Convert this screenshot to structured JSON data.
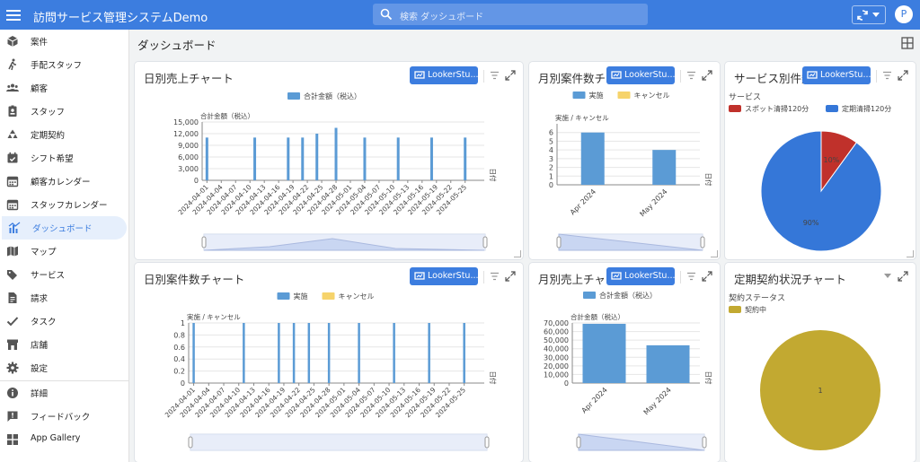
{
  "app": {
    "title": "訪問サービス管理システムDemo",
    "avatar_letter": "P"
  },
  "search": {
    "placeholder": "検索 ダッシュボード"
  },
  "sidebar": {
    "items": [
      {
        "label": "案件",
        "icon": "box-icon"
      },
      {
        "label": "手配スタッフ",
        "icon": "walking-person-icon"
      },
      {
        "label": "顧客",
        "icon": "users-icon"
      },
      {
        "label": "スタッフ",
        "icon": "badge-icon"
      },
      {
        "label": "定期契約",
        "icon": "recycle-icon"
      },
      {
        "label": "シフト希望",
        "icon": "calendar-check-icon"
      },
      {
        "label": "顧客カレンダー",
        "icon": "calendar-icon"
      },
      {
        "label": "スタッフカレンダー",
        "icon": "calendar-icon"
      },
      {
        "label": "ダッシュボード",
        "icon": "chart-icon"
      },
      {
        "label": "マップ",
        "icon": "map-icon"
      },
      {
        "label": "サービス",
        "icon": "tags-icon"
      },
      {
        "label": "請求",
        "icon": "invoice-icon"
      },
      {
        "label": "タスク",
        "icon": "check-icon"
      },
      {
        "label": "店舗",
        "icon": "store-icon"
      },
      {
        "label": "設定",
        "icon": "gear-icon"
      },
      {
        "label": "詳細",
        "icon": "info-icon"
      },
      {
        "label": "フィードバック",
        "icon": "feedback-icon"
      },
      {
        "label": "App Gallery",
        "icon": "apps-icon"
      }
    ]
  },
  "page": {
    "title": "ダッシュボード"
  },
  "cards": {
    "daily_sales": {
      "title": "日別売上チャート"
    },
    "monthly_count": {
      "title": "月別案件数チャート"
    },
    "service_count": {
      "title": "サービス別件数"
    },
    "daily_count": {
      "title": "日別案件数チャート"
    },
    "monthly_sales": {
      "title": "月別売上チャート"
    },
    "contract_status": {
      "title": "定期契約状況チャート"
    }
  },
  "looker_label": "LookerStu...",
  "colors": {
    "primary": "#3c7ddf",
    "bar": "#5b9bd5",
    "cancel": "#f6d36b",
    "red": "#c0312b",
    "blue": "#3577d8",
    "olive": "#c2a931"
  },
  "chart_data": [
    {
      "id": "daily_sales",
      "type": "bar",
      "legend": [
        "合計金額（税込）"
      ],
      "ylabel": "合計金額（税込）",
      "xlabel": "日付",
      "ylim": [
        0,
        15000
      ],
      "yticks": [
        0,
        3000,
        6000,
        9000,
        12000,
        15000
      ],
      "ytick_labels": [
        "0",
        "3,000",
        "6,000",
        "9,000",
        "12,000",
        "15,000"
      ],
      "xlim": [
        "2024-03-31",
        "2024-05-29"
      ],
      "x_tick_labels": [
        "2024-04-01",
        "2024-04-04",
        "2024-04-07",
        "2024-04-10",
        "2024-04-13",
        "2024-04-16",
        "2024-04-19",
        "2024-04-22",
        "2024-04-25",
        "2024-04-28",
        "2024-05-01",
        "2024-05-04",
        "2024-05-07",
        "2024-05-10",
        "2024-05-13",
        "2024-05-16",
        "2024-05-19",
        "2024-05-22",
        "2024-05-25"
      ],
      "points": [
        {
          "x": "2024-04-01",
          "y": 11000
        },
        {
          "x": "2024-04-11",
          "y": 11000
        },
        {
          "x": "2024-04-18",
          "y": 11000
        },
        {
          "x": "2024-04-21",
          "y": 11000
        },
        {
          "x": "2024-04-24",
          "y": 12000
        },
        {
          "x": "2024-04-28",
          "y": 13500
        },
        {
          "x": "2024-05-04",
          "y": 11000
        },
        {
          "x": "2024-05-11",
          "y": 11000
        },
        {
          "x": "2024-05-18",
          "y": 11000
        },
        {
          "x": "2024-05-25",
          "y": 11000
        },
        {
          "x": "2024-06-01",
          "y": 11000
        }
      ]
    },
    {
      "id": "monthly_count",
      "type": "bar",
      "legend": [
        "実施",
        "キャンセル"
      ],
      "ylabel": "実施 / キャンセル",
      "xlabel": "日付",
      "ylim": [
        0,
        7
      ],
      "yticks": [
        0,
        1,
        2,
        3,
        4,
        5,
        6
      ],
      "categories": [
        "Apr 2024",
        "May 2024"
      ],
      "series": [
        {
          "name": "実施",
          "values": [
            6,
            4
          ]
        },
        {
          "name": "キャンセル",
          "values": [
            0,
            0
          ]
        }
      ]
    },
    {
      "id": "service_count",
      "type": "pie",
      "legend_title": "サービス",
      "slices": [
        {
          "label": "スポット清掃120分",
          "value": 10,
          "text": "10%"
        },
        {
          "label": "定期清掃120分",
          "value": 90,
          "text": "90%"
        }
      ]
    },
    {
      "id": "daily_count",
      "type": "bar",
      "legend": [
        "実施",
        "キャンセル"
      ],
      "ylabel": "実施 / キャンセル",
      "xlabel": "日付",
      "ylim": [
        0,
        1
      ],
      "yticks": [
        0,
        0.2,
        0.4,
        0.6,
        0.8,
        1
      ],
      "xlim": [
        "2024-03-31",
        "2024-05-29"
      ],
      "x_tick_labels": [
        "2024-04-01",
        "2024-04-04",
        "2024-04-07",
        "2024-04-10",
        "2024-04-13",
        "2024-04-16",
        "2024-04-19",
        "2024-04-22",
        "2024-04-25",
        "2024-04-28",
        "2024-05-01",
        "2024-05-04",
        "2024-05-07",
        "2024-05-10",
        "2024-05-13",
        "2024-05-16",
        "2024-05-19",
        "2024-05-22",
        "2024-05-25"
      ],
      "points": [
        {
          "x": "2024-04-01",
          "y": 1
        },
        {
          "x": "2024-04-11",
          "y": 1
        },
        {
          "x": "2024-04-18",
          "y": 1
        },
        {
          "x": "2024-04-21",
          "y": 1
        },
        {
          "x": "2024-04-24",
          "y": 1
        },
        {
          "x": "2024-04-28",
          "y": 1
        },
        {
          "x": "2024-05-04",
          "y": 1
        },
        {
          "x": "2024-05-11",
          "y": 1
        },
        {
          "x": "2024-05-18",
          "y": 1
        },
        {
          "x": "2024-05-25",
          "y": 1
        },
        {
          "x": "2024-06-01",
          "y": 1
        }
      ]
    },
    {
      "id": "monthly_sales",
      "type": "bar",
      "legend": [
        "合計金額（税込）"
      ],
      "ylabel": "合計金額（税込）",
      "xlabel": "日付",
      "ylim": [
        0,
        70000
      ],
      "yticks": [
        0,
        10000,
        20000,
        30000,
        40000,
        50000,
        60000,
        70000
      ],
      "ytick_labels": [
        "0",
        "10,000",
        "20,000",
        "30,000",
        "40,000",
        "50,000",
        "60,000",
        "70,000"
      ],
      "categories": [
        "Apr 2024",
        "May 2024"
      ],
      "series": [
        {
          "name": "合計金額（税込）",
          "values": [
            69000,
            44000
          ]
        }
      ]
    },
    {
      "id": "contract_status",
      "type": "pie",
      "legend_title": "契約ステータス",
      "slices": [
        {
          "label": "契約中",
          "value": 1,
          "text": "1"
        }
      ]
    }
  ]
}
